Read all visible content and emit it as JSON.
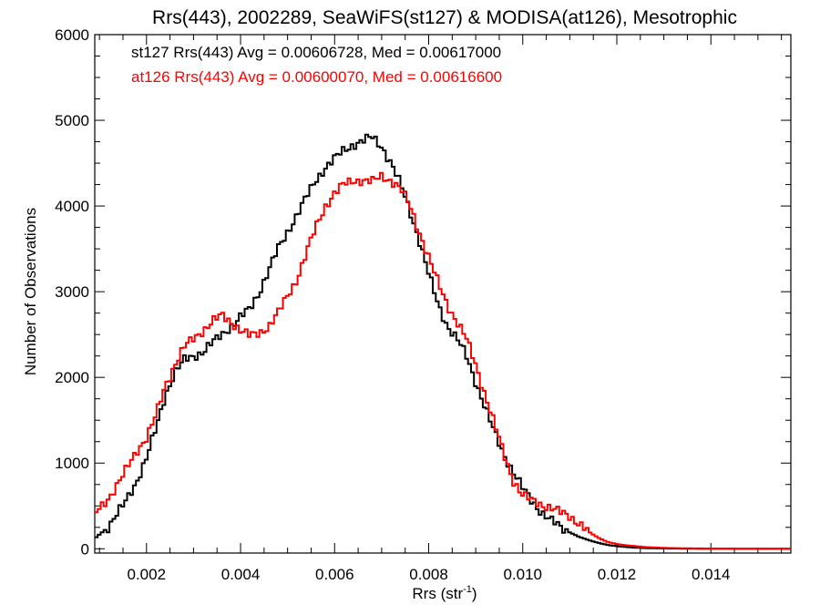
{
  "chart_data": {
    "type": "line",
    "title": "Rrs(443), 2002289, SeaWiFS(st127) & MODISA(at126), Mesotrophic",
    "xlabel": "Rrs (str",
    "xlabel_sup": "-1",
    "xlabel_end": ")",
    "ylabel": "Number of Observations",
    "xlim": [
      0.0009,
      0.0157
    ],
    "ylim": [
      -50,
      6000
    ],
    "xticks": [
      0.002,
      0.004,
      0.006,
      0.008,
      0.01,
      0.012,
      0.014
    ],
    "xtick_labels": [
      "0.002",
      "0.004",
      "0.006",
      "0.008",
      "0.010",
      "0.012",
      "0.014"
    ],
    "yticks": [
      0,
      1000,
      2000,
      3000,
      4000,
      5000,
      6000
    ],
    "ytick_labels": [
      "0",
      "1000",
      "2000",
      "3000",
      "4000",
      "5000",
      "6000"
    ],
    "grid": false,
    "legend": {
      "placement": "top-left"
    },
    "series": [
      {
        "name": "st127 Rrs(443) Avg = 0.00606728, Med = 0.00617000",
        "color": "#000000",
        "points": [
          [
            0.0009,
            120
          ],
          [
            0.0012,
            260
          ],
          [
            0.0015,
            500
          ],
          [
            0.0018,
            800
          ],
          [
            0.002,
            1050
          ],
          [
            0.0022,
            1400
          ],
          [
            0.0024,
            1800
          ],
          [
            0.0026,
            2050
          ],
          [
            0.0028,
            2200
          ],
          [
            0.003,
            2250
          ],
          [
            0.0032,
            2300
          ],
          [
            0.0034,
            2400
          ],
          [
            0.0036,
            2500
          ],
          [
            0.0038,
            2600
          ],
          [
            0.004,
            2700
          ],
          [
            0.0042,
            2800
          ],
          [
            0.0044,
            3000
          ],
          [
            0.0046,
            3250
          ],
          [
            0.0048,
            3500
          ],
          [
            0.005,
            3700
          ],
          [
            0.0052,
            3900
          ],
          [
            0.0054,
            4100
          ],
          [
            0.0056,
            4300
          ],
          [
            0.0058,
            4450
          ],
          [
            0.006,
            4550
          ],
          [
            0.0062,
            4650
          ],
          [
            0.0064,
            4720
          ],
          [
            0.0066,
            4760
          ],
          [
            0.0068,
            4800
          ],
          [
            0.007,
            4700
          ],
          [
            0.0072,
            4500
          ],
          [
            0.0074,
            4250
          ],
          [
            0.0076,
            3950
          ],
          [
            0.0078,
            3600
          ],
          [
            0.008,
            3200
          ],
          [
            0.0082,
            2850
          ],
          [
            0.0084,
            2600
          ],
          [
            0.0086,
            2450
          ],
          [
            0.0088,
            2250
          ],
          [
            0.009,
            1950
          ],
          [
            0.0092,
            1650
          ],
          [
            0.0094,
            1350
          ],
          [
            0.0096,
            1100
          ],
          [
            0.0098,
            900
          ],
          [
            0.01,
            700
          ],
          [
            0.0102,
            550
          ],
          [
            0.0104,
            430
          ],
          [
            0.0106,
            330
          ],
          [
            0.0108,
            250
          ],
          [
            0.011,
            190
          ],
          [
            0.0112,
            140
          ],
          [
            0.0114,
            100
          ],
          [
            0.0116,
            70
          ],
          [
            0.0118,
            45
          ],
          [
            0.012,
            30
          ],
          [
            0.0122,
            20
          ],
          [
            0.0124,
            12
          ],
          [
            0.0126,
            8
          ],
          [
            0.0128,
            5
          ],
          [
            0.013,
            4
          ],
          [
            0.0135,
            2
          ],
          [
            0.014,
            1
          ],
          [
            0.015,
            0
          ],
          [
            0.0157,
            0
          ]
        ]
      },
      {
        "name": "at126 Rrs(443) Avg = 0.00600070, Med = 0.00616600",
        "color": "#ff0000",
        "points": [
          [
            0.0009,
            400
          ],
          [
            0.0012,
            600
          ],
          [
            0.0015,
            850
          ],
          [
            0.0018,
            1150
          ],
          [
            0.002,
            1300
          ],
          [
            0.0022,
            1550
          ],
          [
            0.0024,
            1900
          ],
          [
            0.0026,
            2150
          ],
          [
            0.0028,
            2350
          ],
          [
            0.003,
            2450
          ],
          [
            0.0032,
            2550
          ],
          [
            0.0034,
            2650
          ],
          [
            0.0036,
            2720
          ],
          [
            0.0038,
            2650
          ],
          [
            0.004,
            2550
          ],
          [
            0.0042,
            2480
          ],
          [
            0.0044,
            2520
          ],
          [
            0.0046,
            2600
          ],
          [
            0.0048,
            2750
          ],
          [
            0.005,
            2950
          ],
          [
            0.0052,
            3150
          ],
          [
            0.0054,
            3450
          ],
          [
            0.0056,
            3750
          ],
          [
            0.0058,
            4000
          ],
          [
            0.006,
            4150
          ],
          [
            0.0062,
            4250
          ],
          [
            0.0064,
            4300
          ],
          [
            0.0066,
            4300
          ],
          [
            0.0068,
            4280
          ],
          [
            0.007,
            4350
          ],
          [
            0.0072,
            4300
          ],
          [
            0.0074,
            4200
          ],
          [
            0.0076,
            4000
          ],
          [
            0.0078,
            3700
          ],
          [
            0.008,
            3400
          ],
          [
            0.0082,
            3100
          ],
          [
            0.0084,
            2850
          ],
          [
            0.0086,
            2650
          ],
          [
            0.0088,
            2450
          ],
          [
            0.009,
            2150
          ],
          [
            0.0092,
            1800
          ],
          [
            0.0094,
            1450
          ],
          [
            0.0096,
            1100
          ],
          [
            0.0098,
            800
          ],
          [
            0.01,
            620
          ],
          [
            0.0102,
            560
          ],
          [
            0.0104,
            520
          ],
          [
            0.0106,
            480
          ],
          [
            0.0108,
            420
          ],
          [
            0.011,
            380
          ],
          [
            0.0112,
            300
          ],
          [
            0.0114,
            200
          ],
          [
            0.0116,
            130
          ],
          [
            0.0118,
            80
          ],
          [
            0.012,
            55
          ],
          [
            0.0122,
            40
          ],
          [
            0.0124,
            30
          ],
          [
            0.0126,
            20
          ],
          [
            0.0128,
            15
          ],
          [
            0.013,
            10
          ],
          [
            0.0135,
            5
          ],
          [
            0.014,
            3
          ],
          [
            0.015,
            0
          ],
          [
            0.0157,
            0
          ]
        ]
      }
    ]
  }
}
